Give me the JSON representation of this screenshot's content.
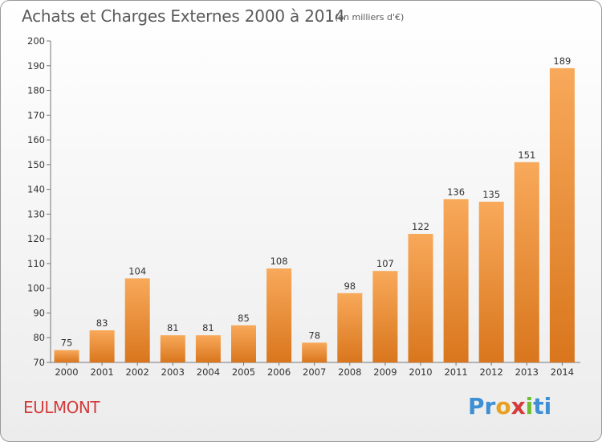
{
  "title": "Achats et Charges Externes 2000 à 2014",
  "subtitle": "(en milliers d'€)",
  "commune": "EULMONT",
  "logo": {
    "p1": "Pr",
    "p2": "o",
    "p3": "x",
    "p4": "i",
    "p5": "ti"
  },
  "colors": {
    "bar_top": "#f8a95a",
    "bar_bottom": "#d9761d",
    "title": "#5a5a5a",
    "commune": "#d33b3b"
  },
  "chart_data": {
    "type": "bar",
    "title": "Achats et Charges Externes 2000 à 2014",
    "subtitle": "(en milliers d'€)",
    "categories": [
      "2000",
      "2001",
      "2002",
      "2003",
      "2004",
      "2005",
      "2006",
      "2007",
      "2008",
      "2009",
      "2010",
      "2011",
      "2012",
      "2013",
      "2014"
    ],
    "values": [
      75,
      83,
      104,
      81,
      81,
      85,
      108,
      78,
      98,
      107,
      122,
      136,
      135,
      151,
      189
    ],
    "ylim": [
      70,
      200
    ],
    "yticks": [
      70,
      80,
      90,
      100,
      110,
      120,
      130,
      140,
      150,
      160,
      170,
      180,
      190,
      200
    ],
    "grid": false,
    "data_labels": true
  }
}
